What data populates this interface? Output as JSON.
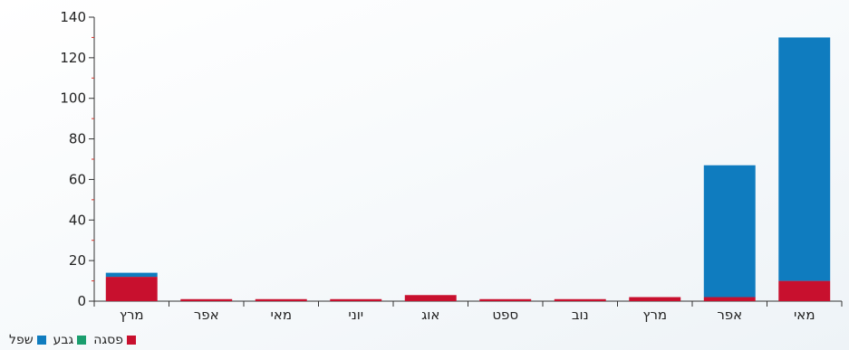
{
  "chart_data": {
    "type": "bar",
    "stacked": true,
    "categories": [
      "מרץ",
      "אפר",
      "מאי",
      "יוני",
      "אוג",
      "ספט",
      "נוב",
      "מרץ",
      "אפר",
      "מאי"
    ],
    "series": [
      {
        "name": "פסגה",
        "color": "#c8102e",
        "values": [
          12,
          1,
          1,
          1,
          3,
          1,
          1,
          2,
          2,
          10
        ]
      },
      {
        "name": "גבע",
        "color": "#1a9e6e",
        "values": [
          0,
          0,
          0,
          0,
          0,
          0,
          0,
          0,
          0,
          0
        ]
      },
      {
        "name": "שפל",
        "color": "#0f7cbf",
        "values": [
          2,
          0,
          0,
          0,
          0,
          0,
          0,
          0,
          65,
          120
        ]
      }
    ],
    "ylim": [
      0,
      140
    ],
    "yticks": [
      0,
      20,
      40,
      60,
      80,
      100,
      120,
      140
    ],
    "xlabel": "",
    "ylabel": "",
    "legend_position": "bottom-left",
    "grid": false
  }
}
